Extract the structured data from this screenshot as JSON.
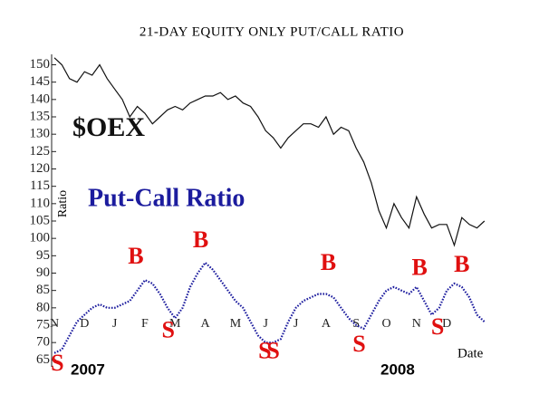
{
  "chart_data": {
    "type": "line",
    "title": "21-DAY EQUITY ONLY PUT/CALL RATIO",
    "y_label": "Ratio",
    "x_label": "Date",
    "year_labels": [
      "2007",
      "2008"
    ],
    "categories": [
      "N",
      null,
      null,
      null,
      "D",
      null,
      null,
      null,
      "J",
      null,
      null,
      null,
      "F",
      null,
      null,
      null,
      "M",
      null,
      null,
      null,
      "A",
      null,
      null,
      null,
      "M",
      null,
      null,
      null,
      "J",
      null,
      null,
      null,
      "J",
      null,
      null,
      null,
      "A",
      null,
      null,
      null,
      "S",
      null,
      null,
      null,
      "O",
      null,
      null,
      null,
      "N",
      null,
      null,
      null,
      "D",
      null,
      null,
      null,
      null,
      null
    ],
    "series": [
      {
        "name": "$OEX",
        "color": "#111111",
        "style": "solid",
        "values": [
          152,
          150,
          146,
          145,
          148,
          147,
          150,
          146,
          143,
          140,
          135,
          138,
          136,
          133,
          135,
          137,
          138,
          137,
          139,
          140,
          141,
          141,
          142,
          140,
          141,
          139,
          138,
          135,
          131,
          129,
          126,
          129,
          131,
          133,
          133,
          132,
          135,
          130,
          132,
          131,
          126,
          122,
          116,
          108,
          103,
          110,
          106,
          103,
          112,
          107,
          103,
          104,
          104,
          98,
          106,
          104,
          103,
          105
        ]
      },
      {
        "name": "Put-Call Ratio",
        "color": "#1c1c9e",
        "style": "dotted",
        "values": [
          67,
          68,
          72,
          76,
          78,
          80,
          81,
          80,
          80,
          81,
          82,
          85,
          88,
          87,
          84,
          80,
          77,
          80,
          86,
          90,
          93,
          91,
          88,
          85,
          82,
          80,
          76,
          72,
          70,
          70,
          71,
          76,
          80,
          82,
          83,
          84,
          84,
          83,
          80,
          77,
          75,
          74,
          78,
          82,
          85,
          86,
          85,
          84,
          86,
          82,
          78,
          80,
          85,
          87,
          86,
          83,
          78,
          76
        ]
      }
    ],
    "annotations": [
      {
        "text": "B",
        "x": 10.8,
        "y": 94.3
      },
      {
        "text": "B",
        "x": 19.4,
        "y": 99
      },
      {
        "text": "B",
        "x": 36.3,
        "y": 92.5
      },
      {
        "text": "B",
        "x": 48.4,
        "y": 91
      },
      {
        "text": "B",
        "x": 54,
        "y": 92
      },
      {
        "text": "S",
        "x": 0.4,
        "y": 63.5
      },
      {
        "text": "S",
        "x": 15.1,
        "y": 73
      },
      {
        "text": "S",
        "x": 27.9,
        "y": 67
      },
      {
        "text": "S",
        "x": 29,
        "y": 67
      },
      {
        "text": "S",
        "x": 40.4,
        "y": 69
      },
      {
        "text": "S",
        "x": 50.8,
        "y": 74
      }
    ],
    "annotation_color": "#e01010",
    "ylim": [
      63,
      153
    ],
    "yticks": [
      65,
      70,
      75,
      80,
      85,
      90,
      95,
      100,
      105,
      110,
      115,
      120,
      125,
      130,
      135,
      140,
      145,
      150
    ]
  }
}
